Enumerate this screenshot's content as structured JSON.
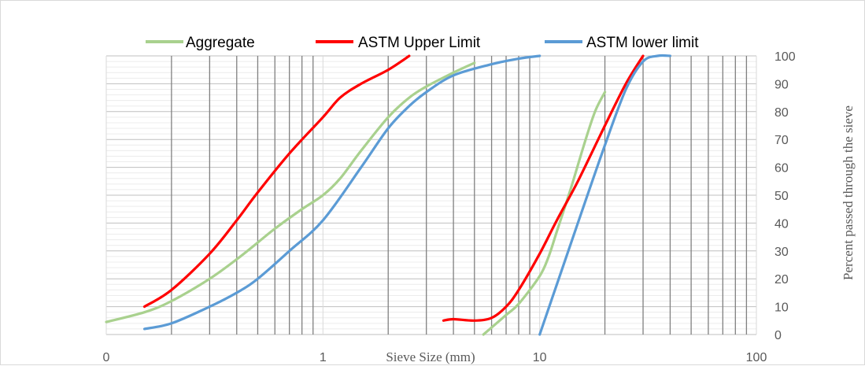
{
  "chart_data": {
    "type": "line",
    "title": "",
    "xlabel": "Sieve Size (mm)",
    "ylabel": "Percent passed through the sieve",
    "x_scale": "log",
    "xlim": [
      0.1,
      100
    ],
    "ylim": [
      0,
      100
    ],
    "x_tick_labels": [
      "0",
      "1",
      "10",
      "100"
    ],
    "y_ticks": [
      0,
      10,
      20,
      30,
      40,
      50,
      60,
      70,
      80,
      90,
      100
    ],
    "grid": {
      "major_vertical": true,
      "minor_vertical": true,
      "horizontal": true
    },
    "legend_position": "top",
    "series": [
      {
        "name": "Aggregate",
        "color": "#a9d18e",
        "points": [
          [
            0.1,
            4.5
          ],
          [
            0.15,
            8
          ],
          [
            0.2,
            12
          ],
          [
            0.3,
            20
          ],
          [
            0.4,
            27
          ],
          [
            0.5,
            33
          ],
          [
            0.6,
            38
          ],
          [
            0.8,
            45
          ],
          [
            1,
            50
          ],
          [
            1.2,
            56
          ],
          [
            1.5,
            66
          ],
          [
            2,
            78
          ],
          [
            2.5,
            85
          ],
          [
            3,
            89
          ],
          [
            4,
            94
          ],
          [
            5,
            97.5
          ]
        ],
        "points_segment2": [
          [
            5.5,
            0
          ],
          [
            7,
            7
          ],
          [
            8,
            11
          ],
          [
            10,
            21
          ],
          [
            11,
            28
          ],
          [
            12,
            37
          ],
          [
            14,
            53
          ],
          [
            16,
            68
          ],
          [
            18,
            80
          ],
          [
            20,
            87
          ]
        ]
      },
      {
        "name": "ASTM Upper Limit",
        "color": "#ff0000",
        "points": [
          [
            0.15,
            10
          ],
          [
            0.2,
            16
          ],
          [
            0.3,
            29
          ],
          [
            0.4,
            41
          ],
          [
            0.5,
            51
          ],
          [
            0.7,
            65
          ],
          [
            1,
            78
          ],
          [
            1.2,
            85
          ],
          [
            1.5,
            90
          ],
          [
            2,
            95
          ],
          [
            2.5,
            100
          ]
        ],
        "points_segment2": [
          [
            3.6,
            5
          ],
          [
            4,
            5.5
          ],
          [
            5,
            5
          ],
          [
            6,
            6
          ],
          [
            7,
            10
          ],
          [
            8,
            16
          ],
          [
            10,
            29
          ],
          [
            12,
            41
          ],
          [
            15,
            55
          ],
          [
            20,
            75
          ],
          [
            25,
            90
          ],
          [
            30,
            100
          ]
        ]
      },
      {
        "name": "ASTM lower limit",
        "color": "#5b9bd5",
        "points": [
          [
            0.15,
            2
          ],
          [
            0.2,
            4
          ],
          [
            0.3,
            10
          ],
          [
            0.4,
            15
          ],
          [
            0.5,
            20
          ],
          [
            0.7,
            30
          ],
          [
            1,
            41
          ],
          [
            1.5,
            60
          ],
          [
            2,
            74
          ],
          [
            2.5,
            82
          ],
          [
            3,
            87
          ],
          [
            4,
            93
          ],
          [
            6,
            97
          ],
          [
            8,
            99
          ],
          [
            10,
            100
          ]
        ],
        "points_segment2": [
          [
            10,
            0
          ],
          [
            12,
            18
          ],
          [
            15,
            40
          ],
          [
            20,
            68
          ],
          [
            25,
            88
          ],
          [
            30,
            98
          ],
          [
            35,
            100
          ],
          [
            40,
            100
          ]
        ]
      }
    ]
  }
}
